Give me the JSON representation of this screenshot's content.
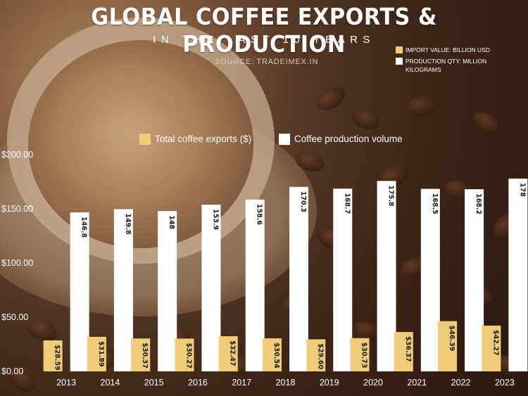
{
  "header": {
    "title": "GLOBAL COFFEE EXPORTS & PRODUCTION",
    "subtitle": "IN THE LAST 10 YEARS",
    "source": "SOURCE:  TRADEIMEX.IN"
  },
  "note_legend": {
    "import_value": "IMPORT VALUE: BILLION USD",
    "production_qty": "PRODUCTION  QTY: MILLION KILOGRAMS"
  },
  "colors": {
    "exports": "#f0cc78",
    "production": "#ffffff",
    "text": "#ffffff"
  },
  "chart_data": {
    "type": "bar",
    "categories": [
      "2013",
      "2014",
      "2015",
      "2016",
      "2017",
      "2018",
      "2019",
      "2020",
      "2021",
      "2022",
      "2023"
    ],
    "series": [
      {
        "name": "Total coffee exports ($)",
        "values": [
          28.59,
          31.89,
          30.37,
          30.27,
          32.47,
          30.54,
          29.6,
          30.73,
          36.37,
          46.39,
          42.27
        ],
        "labels": [
          "$28.59",
          "$31.89",
          "$30.37",
          "$30.27",
          "$32.47",
          "$30.54",
          "$29.60",
          "$30.73",
          "$36.37",
          "$46.39",
          "$42.27"
        ]
      },
      {
        "name": "Coffee production volume",
        "values": [
          146.8,
          149.8,
          148,
          153.9,
          158.6,
          170.3,
          168.7,
          175.8,
          168.5,
          168.2,
          178
        ],
        "labels": [
          "146.8",
          "149.8",
          "148",
          "153.9",
          "158.6",
          "170.3",
          "168.7",
          "175.8",
          "168.5",
          "168.2",
          "178"
        ]
      }
    ],
    "yticks": [
      "$0.00",
      "$50.00",
      "$100.00",
      "$150.00",
      "$200.00"
    ],
    "ylim": [
      0,
      200
    ],
    "legend": "top-center",
    "grid": false
  }
}
